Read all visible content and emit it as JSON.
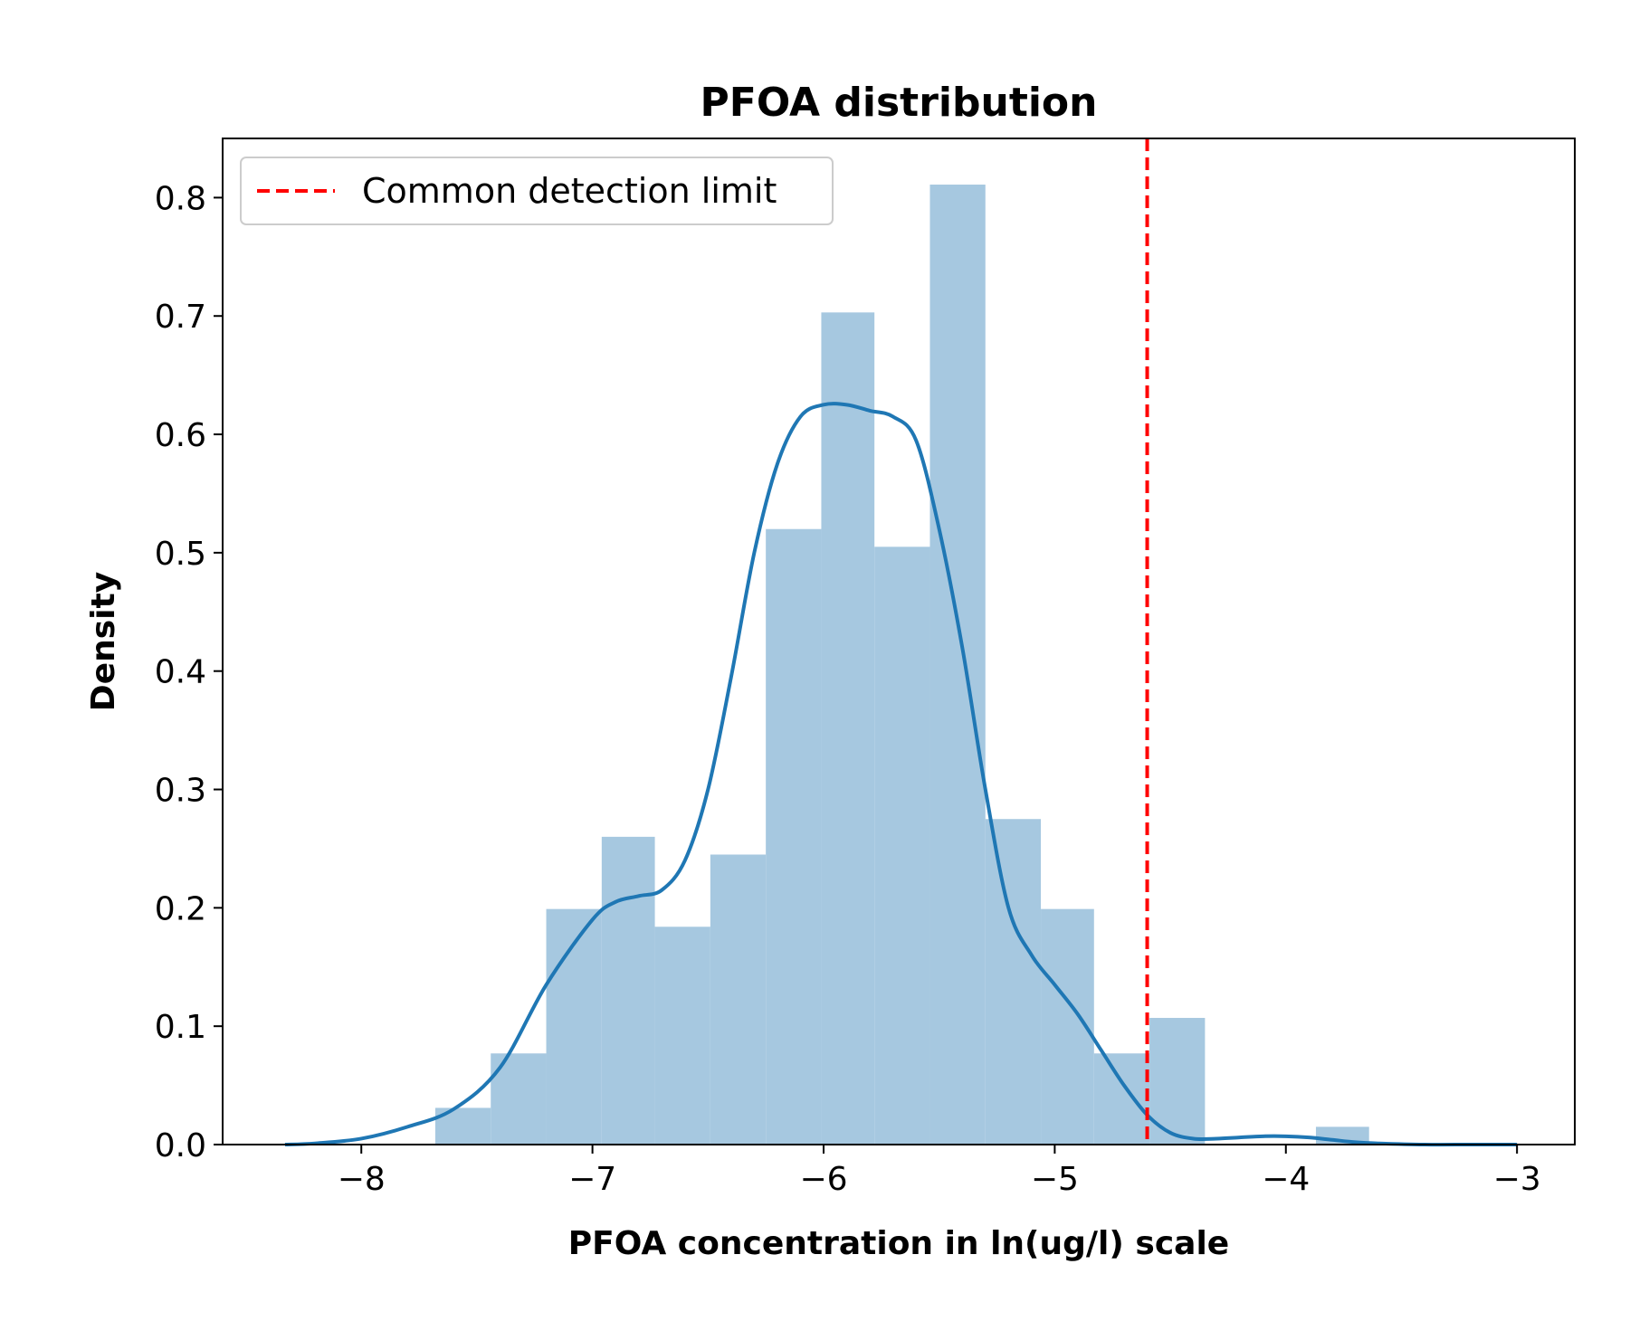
{
  "chart_data": {
    "type": "bar",
    "title": "PFOA distribution",
    "xlabel": "PFOA concentration in ln(ug/l) scale",
    "ylabel": "Density",
    "xlim": [
      -8.6,
      -2.75
    ],
    "ylim": [
      0,
      0.85
    ],
    "xticks": [
      -8,
      -7,
      -6,
      -5,
      -4,
      -3
    ],
    "xtick_labels": [
      "−8",
      "−7",
      "−6",
      "−5",
      "−4",
      "−3"
    ],
    "yticks": [
      0.0,
      0.1,
      0.2,
      0.3,
      0.4,
      0.5,
      0.6,
      0.7,
      0.8
    ],
    "ytick_labels": [
      "0.0",
      "0.1",
      "0.2",
      "0.3",
      "0.4",
      "0.5",
      "0.6",
      "0.7",
      "0.8"
    ],
    "grid": false,
    "legend_position": "upper-left",
    "histogram": {
      "name": "",
      "color": "#a6c8e0",
      "bins": [
        {
          "x0": -7.68,
          "x1": -7.44,
          "density": 0.031
        },
        {
          "x0": -7.44,
          "x1": -7.2,
          "density": 0.077
        },
        {
          "x0": -7.2,
          "x1": -6.96,
          "density": 0.199
        },
        {
          "x0": -6.96,
          "x1": -6.73,
          "density": 0.26
        },
        {
          "x0": -6.73,
          "x1": -6.49,
          "density": 0.184
        },
        {
          "x0": -6.49,
          "x1": -6.25,
          "density": 0.245
        },
        {
          "x0": -6.25,
          "x1": -6.01,
          "density": 0.52
        },
        {
          "x0": -6.01,
          "x1": -5.78,
          "density": 0.703
        },
        {
          "x0": -5.78,
          "x1": -5.54,
          "density": 0.505
        },
        {
          "x0": -5.54,
          "x1": -5.3,
          "density": 0.811
        },
        {
          "x0": -5.3,
          "x1": -5.06,
          "density": 0.275
        },
        {
          "x0": -5.06,
          "x1": -4.83,
          "density": 0.199
        },
        {
          "x0": -4.83,
          "x1": -4.59,
          "density": 0.077
        },
        {
          "x0": -4.59,
          "x1": -4.35,
          "density": 0.107
        },
        {
          "x0": -4.35,
          "x1": -4.11,
          "density": 0.0
        },
        {
          "x0": -4.11,
          "x1": -3.87,
          "density": 0.0
        },
        {
          "x0": -3.87,
          "x1": -3.64,
          "density": 0.015
        }
      ]
    },
    "kde": {
      "name": "",
      "color": "#1f77b4",
      "x": [
        -8.33,
        -8.2,
        -8.0,
        -7.8,
        -7.6,
        -7.4,
        -7.2,
        -7.0,
        -6.9,
        -6.8,
        -6.7,
        -6.6,
        -6.5,
        -6.4,
        -6.3,
        -6.2,
        -6.1,
        -6.0,
        -5.9,
        -5.8,
        -5.7,
        -5.6,
        -5.5,
        -5.4,
        -5.3,
        -5.2,
        -5.1,
        -5.0,
        -4.9,
        -4.8,
        -4.7,
        -4.6,
        -4.5,
        -4.4,
        -4.3,
        -4.2,
        -4.1,
        -4.0,
        -3.9,
        -3.8,
        -3.7,
        -3.6,
        -3.4,
        -3.2,
        -3.0
      ],
      "y": [
        0.0,
        0.001,
        0.005,
        0.015,
        0.03,
        0.065,
        0.135,
        0.19,
        0.205,
        0.21,
        0.215,
        0.24,
        0.3,
        0.395,
        0.5,
        0.575,
        0.615,
        0.625,
        0.625,
        0.62,
        0.615,
        0.595,
        0.52,
        0.42,
        0.3,
        0.2,
        0.16,
        0.135,
        0.11,
        0.08,
        0.05,
        0.025,
        0.01,
        0.005,
        0.005,
        0.006,
        0.007,
        0.007,
        0.006,
        0.004,
        0.002,
        0.001,
        0.0,
        0.0,
        0.0
      ]
    },
    "reference_lines": [
      {
        "orientation": "vertical",
        "x": -4.6,
        "color": "#ff0000",
        "style": "dashed",
        "label": "Common detection limit"
      }
    ]
  }
}
